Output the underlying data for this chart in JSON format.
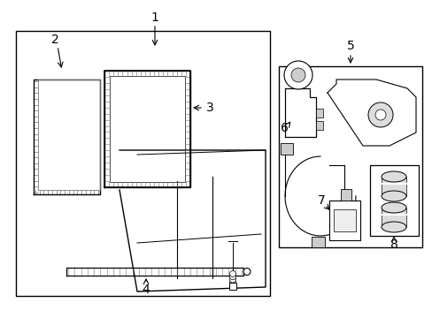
{
  "bg_color": "#ffffff",
  "line_color": "#000000",
  "gray_color": "#777777",
  "fig_width": 4.89,
  "fig_height": 3.6,
  "dpi": 100
}
